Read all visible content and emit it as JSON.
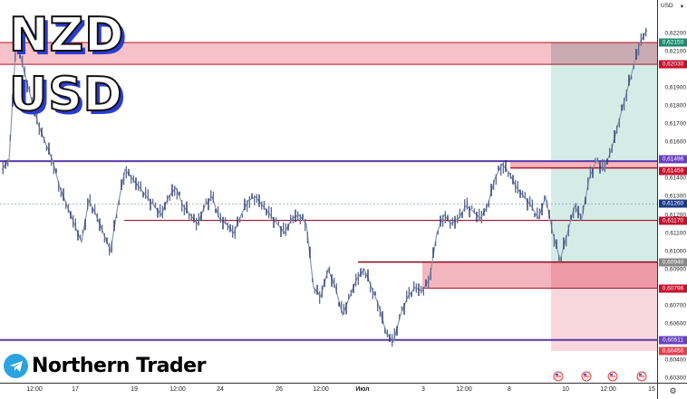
{
  "title": {
    "line1": "NZD",
    "line2": "USD"
  },
  "brand": {
    "name": "Northern Trader",
    "icon": "telegram-icon"
  },
  "price_axis": {
    "currency": "USD",
    "dropdown_icon": "chevron-down-icon",
    "ticks": [
      "0,62200",
      "0,62100",
      "0,61900",
      "0,61800",
      "0,61700",
      "0,61600",
      "0,61400",
      "0,61300",
      "0,61200",
      "0,61100",
      "0,61000",
      "0,60900",
      "0,60700",
      "0,60600",
      "0,60400",
      "0,60300"
    ],
    "labels": [
      {
        "text": "0,62150",
        "color": "#1e8c6e"
      },
      {
        "text": "0,62030",
        "color": "#c8102e"
      },
      {
        "text": "0,61496",
        "color": "#6a3fc1"
      },
      {
        "text": "0,61459",
        "color": "#c8102e"
      },
      {
        "text": "0,61260",
        "color": "#1a3a8a"
      },
      {
        "text": "0,61170",
        "color": "#c8102e"
      },
      {
        "text": "0,60940",
        "color": "#888888"
      },
      {
        "text": "0,60796",
        "color": "#c8102e"
      },
      {
        "text": "0,60511",
        "color": "#6a3fc1"
      },
      {
        "text": "0,60450",
        "color": "#e0404f"
      }
    ]
  },
  "time_axis": {
    "labels": [
      "12:00",
      "17",
      "19",
      "12:00",
      "24",
      "26",
      "12:00",
      "Июл",
      "3",
      "12:00",
      "8",
      "10",
      "12:00",
      "15"
    ],
    "settings_icon": "gear-icon"
  },
  "events": {
    "icon": "us-flag-icon",
    "count": 4
  },
  "chart_data": {
    "type": "candlestick",
    "title": "NZD USD",
    "symbol": "NZDUSD",
    "xlabel": "",
    "ylabel": "USD",
    "ylim": [
      0.6025,
      0.6226
    ],
    "x_ticks": [
      "12:00",
      "17",
      "19",
      "12:00",
      "24",
      "26",
      "12:00",
      "Июл",
      "3",
      "12:00",
      "8",
      "10",
      "12:00",
      "15"
    ],
    "horizontal_levels": [
      {
        "price": 0.61496,
        "color": "#5b3aa8",
        "type": "resistance"
      },
      {
        "price": 0.61459,
        "color": "#b0102a",
        "type": "level"
      },
      {
        "price": 0.6117,
        "color": "#b0102a",
        "type": "level"
      },
      {
        "price": 0.6094,
        "color": "#b0102a",
        "type": "level"
      },
      {
        "price": 0.60796,
        "color": "#b0102a",
        "type": "level"
      },
      {
        "price": 0.60511,
        "color": "#5b3aa8",
        "type": "support"
      },
      {
        "price": 0.6203,
        "color": "#b0102a",
        "type": "level"
      },
      {
        "price": 0.6215,
        "color": "#b0102a",
        "type": "level"
      }
    ],
    "zones": [
      {
        "name": "top-supply-zone",
        "from": 0.6203,
        "to": 0.6215,
        "color": "#f4b6be"
      },
      {
        "name": "demand-zone",
        "from": 0.60796,
        "to": 0.6094,
        "color": "#f4b6be"
      }
    ],
    "position": {
      "type": "long",
      "entry": 0.6094,
      "target": 0.6215,
      "stop": 0.6045
    },
    "current_price": 0.6126,
    "last_price": 0.622,
    "price_path": [
      0.6145,
      0.615,
      0.6218,
      0.62,
      0.6185,
      0.617,
      0.616,
      0.615,
      0.6135,
      0.6125,
      0.6115,
      0.6105,
      0.6128,
      0.612,
      0.611,
      0.61,
      0.6125,
      0.6145,
      0.614,
      0.6135,
      0.613,
      0.6125,
      0.612,
      0.613,
      0.6135,
      0.6125,
      0.612,
      0.6115,
      0.6125,
      0.613,
      0.6118,
      0.6115,
      0.611,
      0.612,
      0.6128,
      0.613,
      0.6125,
      0.612,
      0.6115,
      0.611,
      0.6118,
      0.612,
      0.6115,
      0.608,
      0.6075,
      0.609,
      0.608,
      0.6065,
      0.6075,
      0.6085,
      0.609,
      0.608,
      0.607,
      0.6055,
      0.605,
      0.6065,
      0.6075,
      0.608,
      0.6078,
      0.6085,
      0.611,
      0.612,
      0.6115,
      0.6118,
      0.6125,
      0.6122,
      0.6118,
      0.6125,
      0.614,
      0.6148,
      0.6143,
      0.6135,
      0.613,
      0.6125,
      0.6118,
      0.613,
      0.611,
      0.6095,
      0.611,
      0.6125,
      0.6118,
      0.614,
      0.615,
      0.6145,
      0.6155,
      0.617,
      0.6185,
      0.62,
      0.6215,
      0.6222
    ]
  }
}
